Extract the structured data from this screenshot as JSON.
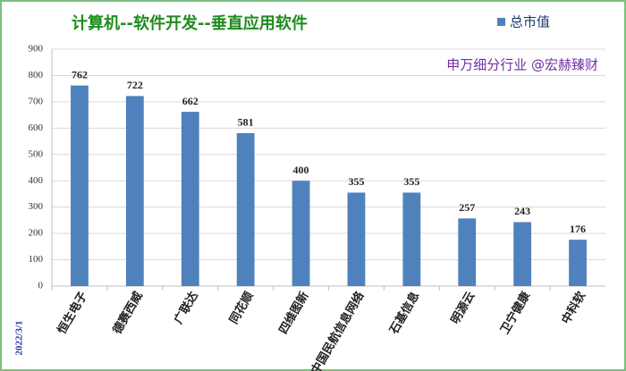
{
  "chart_data": {
    "type": "bar",
    "title": "计算机--软件开发--垂直应用软件",
    "annotation": "申万细分行业 @宏赫臻财",
    "date_label": "2022/3/1",
    "categories": [
      "恒生电子",
      "德赛西威",
      "广联达",
      "同花顺",
      "四维图新",
      "中国民航信息网络",
      "石基信息",
      "明源云",
      "卫宁健康",
      "中科软"
    ],
    "series": [
      {
        "name": "总市值",
        "color": "#4f81bd",
        "values": [
          762,
          722,
          662,
          581,
          400,
          355,
          355,
          257,
          243,
          176
        ]
      }
    ],
    "ylim": [
      0,
      900
    ],
    "yticks": [
      0,
      100,
      200,
      300,
      400,
      500,
      600,
      700,
      800,
      900
    ],
    "grid": true
  }
}
